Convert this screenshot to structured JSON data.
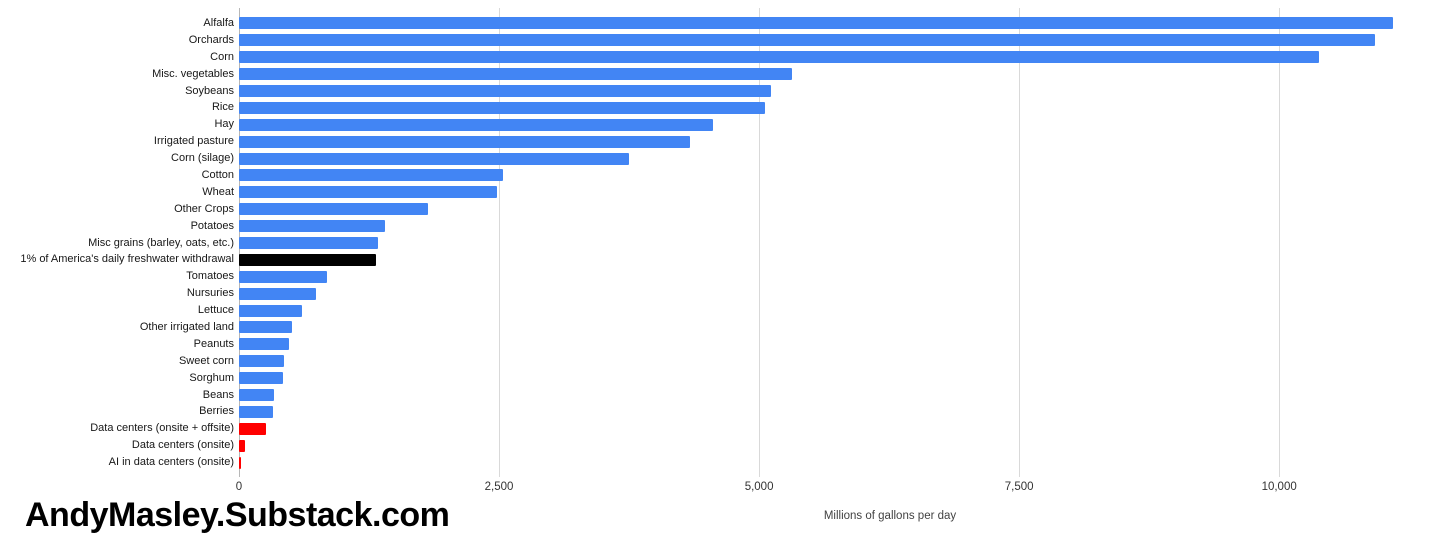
{
  "watermark": "AndyMasley.Substack.com",
  "colors": {
    "series_blue": "#4285f4",
    "highlight_black": "#000000",
    "highlight_red": "#ff0000",
    "gridline": "#d9d9d9",
    "axis_baseline": "#b7b7b7"
  },
  "chart_data": {
    "type": "bar",
    "orientation": "horizontal",
    "title": "",
    "xlabel": "Millions of gallons per day",
    "ylabel": "",
    "xlim": [
      0,
      11700
    ],
    "grid": true,
    "legend": "none",
    "xticks": [
      0,
      2500,
      5000,
      7500,
      10000
    ],
    "xtick_labels": [
      "0",
      "2,500",
      "5,000",
      "7,500",
      "10,000"
    ],
    "bars": [
      {
        "label": "Alfalfa",
        "value": 11090,
        "color": "#4285f4"
      },
      {
        "label": "Orchards",
        "value": 10920,
        "color": "#4285f4"
      },
      {
        "label": "Corn",
        "value": 10380,
        "color": "#4285f4"
      },
      {
        "label": "Misc. vegetables",
        "value": 5320,
        "color": "#4285f4"
      },
      {
        "label": "Soybeans",
        "value": 5110,
        "color": "#4285f4"
      },
      {
        "label": "Rice",
        "value": 5060,
        "color": "#4285f4"
      },
      {
        "label": "Hay",
        "value": 4560,
        "color": "#4285f4"
      },
      {
        "label": "Irrigated pasture",
        "value": 4340,
        "color": "#4285f4"
      },
      {
        "label": "Corn (silage)",
        "value": 3750,
        "color": "#4285f4"
      },
      {
        "label": "Cotton",
        "value": 2540,
        "color": "#4285f4"
      },
      {
        "label": "Wheat",
        "value": 2480,
        "color": "#4285f4"
      },
      {
        "label": "Other Crops",
        "value": 1820,
        "color": "#4285f4"
      },
      {
        "label": "Potatoes",
        "value": 1400,
        "color": "#4285f4"
      },
      {
        "label": "Misc grains (barley, oats, etc.)",
        "value": 1340,
        "color": "#4285f4"
      },
      {
        "label": "1% of America's daily freshwater withdrawal",
        "value": 1320,
        "color": "#000000"
      },
      {
        "label": "Tomatoes",
        "value": 845,
        "color": "#4285f4"
      },
      {
        "label": "Nursuries",
        "value": 740,
        "color": "#4285f4"
      },
      {
        "label": "Lettuce",
        "value": 610,
        "color": "#4285f4"
      },
      {
        "label": "Other irrigated land",
        "value": 510,
        "color": "#4285f4"
      },
      {
        "label": "Peanuts",
        "value": 480,
        "color": "#4285f4"
      },
      {
        "label": "Sweet corn",
        "value": 430,
        "color": "#4285f4"
      },
      {
        "label": "Sorghum",
        "value": 420,
        "color": "#4285f4"
      },
      {
        "label": "Beans",
        "value": 335,
        "color": "#4285f4"
      },
      {
        "label": "Berries",
        "value": 325,
        "color": "#ff0000"
      },
      {
        "label": "Data centers (onsite + offsite)",
        "value": 255,
        "color": "#ff0000"
      },
      {
        "label": "Data centers (onsite)",
        "value": 55,
        "color": "#ff0000"
      },
      {
        "label": "AI in data centers (onsite)",
        "value": 13,
        "color": "#ff0000"
      }
    ]
  }
}
